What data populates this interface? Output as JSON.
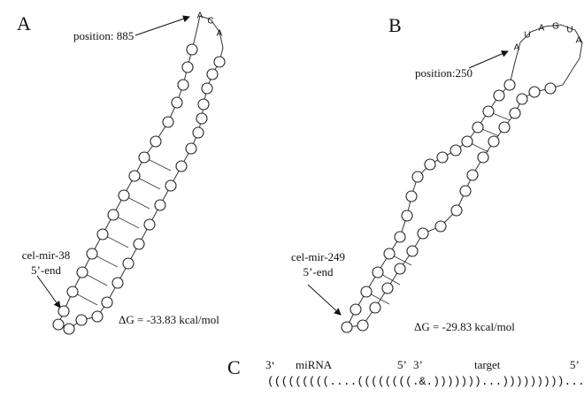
{
  "panels": {
    "a": {
      "label": "A",
      "position_label": "position: 885",
      "mirna_name": "cel-mir-38",
      "end_label": "5’-end",
      "delta_g": "ΔG = -33.83 kcal/mol",
      "loop_letters": [
        "A",
        "C",
        "A"
      ]
    },
    "b": {
      "label": "B",
      "position_label": "position:250",
      "mirna_name": "cel-mir-249",
      "end_label": "5’-end",
      "delta_g": "ΔG = -29.83 kcal/mol",
      "loop_letters": [
        "A",
        "U",
        "A",
        "G",
        "U",
        "A"
      ]
    },
    "c": {
      "label": "C",
      "header": {
        "mirna_3": "3‘",
        "mirna": "miRNA",
        "mirna_5": "5’",
        "target_3": "3’",
        "target": "target",
        "target_5": "5’"
      },
      "structure": "(((((((((....((((((((.&.)))))))...)))))))))........."
    }
  }
}
